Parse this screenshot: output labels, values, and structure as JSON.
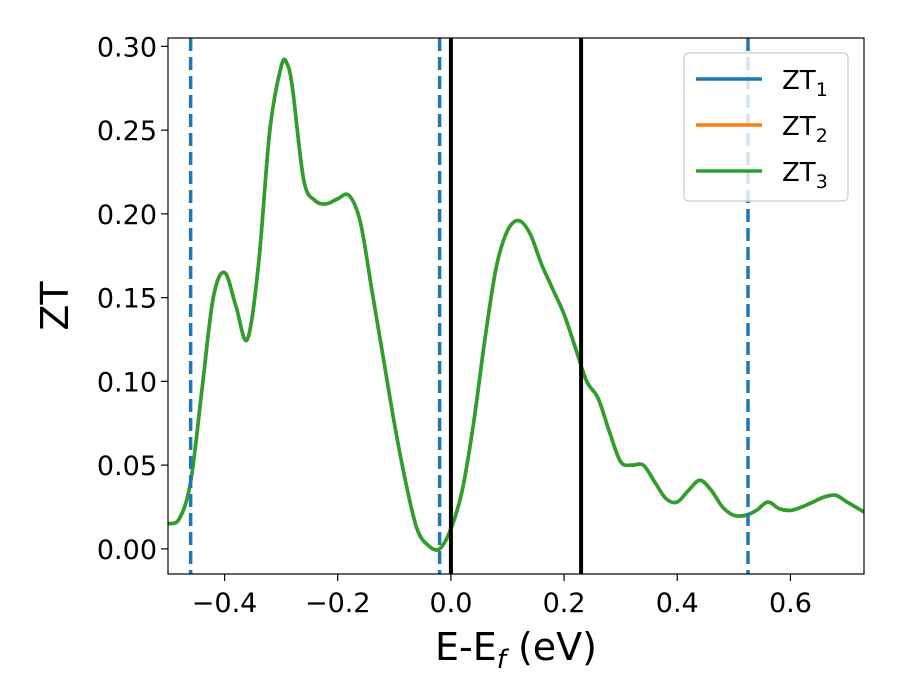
{
  "chart_data": {
    "type": "line",
    "title": "",
    "xlabel": "E-E",
    "xlabel_sub": "f",
    "xlabel_unit": " (eV)",
    "ylabel": "ZT",
    "xlim": [
      -0.5,
      0.73
    ],
    "ylim": [
      -0.015,
      0.305
    ],
    "grid": false,
    "legend_position": "top-right",
    "x_ticks": [
      -0.4,
      -0.2,
      0.0,
      0.2,
      0.4,
      0.6
    ],
    "x_tick_labels": [
      "−0.4",
      "−0.2",
      "0.0",
      "0.2",
      "0.4",
      "0.6"
    ],
    "y_ticks": [
      0.0,
      0.05,
      0.1,
      0.15,
      0.2,
      0.25,
      0.3
    ],
    "y_tick_labels": [
      "0.00",
      "0.05",
      "0.10",
      "0.15",
      "0.20",
      "0.25",
      "0.30"
    ],
    "series": [
      {
        "name": "ZT",
        "sub": "1",
        "color": "#1f77b4",
        "values": "same-as-ZT3"
      },
      {
        "name": "ZT",
        "sub": "2",
        "color": "#ff7f0e",
        "values": "same-as-ZT3"
      },
      {
        "name": "ZT",
        "sub": "3",
        "color": "#2ca02c"
      }
    ],
    "x": [
      -0.5,
      -0.48,
      -0.46,
      -0.44,
      -0.42,
      -0.4,
      -0.38,
      -0.36,
      -0.34,
      -0.32,
      -0.3,
      -0.29,
      -0.28,
      -0.26,
      -0.24,
      -0.22,
      -0.2,
      -0.18,
      -0.16,
      -0.14,
      -0.12,
      -0.1,
      -0.08,
      -0.06,
      -0.04,
      -0.02,
      0.0,
      0.02,
      0.04,
      0.06,
      0.08,
      0.1,
      0.12,
      0.14,
      0.16,
      0.18,
      0.2,
      0.22,
      0.24,
      0.26,
      0.28,
      0.3,
      0.32,
      0.34,
      0.36,
      0.38,
      0.4,
      0.42,
      0.44,
      0.46,
      0.48,
      0.5,
      0.52,
      0.54,
      0.56,
      0.58,
      0.6,
      0.62,
      0.64,
      0.66,
      0.68,
      0.7,
      0.73
    ],
    "y": [
      0.015,
      0.018,
      0.04,
      0.095,
      0.15,
      0.165,
      0.145,
      0.125,
      0.17,
      0.25,
      0.288,
      0.29,
      0.275,
      0.22,
      0.208,
      0.206,
      0.209,
      0.211,
      0.195,
      0.155,
      0.115,
      0.075,
      0.04,
      0.012,
      0.002,
      0.0,
      0.012,
      0.035,
      0.075,
      0.125,
      0.168,
      0.19,
      0.196,
      0.188,
      0.17,
      0.155,
      0.14,
      0.12,
      0.1,
      0.09,
      0.07,
      0.052,
      0.05,
      0.05,
      0.04,
      0.03,
      0.028,
      0.035,
      0.041,
      0.035,
      0.025,
      0.02,
      0.02,
      0.023,
      0.028,
      0.024,
      0.023,
      0.025,
      0.028,
      0.031,
      0.032,
      0.028,
      0.022
    ],
    "vlines": [
      {
        "x": -0.46,
        "style": "dashed",
        "color": "#1f77b4"
      },
      {
        "x": -0.02,
        "style": "dashed",
        "color": "#1f77b4"
      },
      {
        "x": 0.0,
        "style": "solid",
        "color": "#000000"
      },
      {
        "x": 0.23,
        "style": "solid",
        "color": "#000000"
      },
      {
        "x": 0.525,
        "style": "dashed",
        "color": "#1f77b4"
      }
    ]
  }
}
